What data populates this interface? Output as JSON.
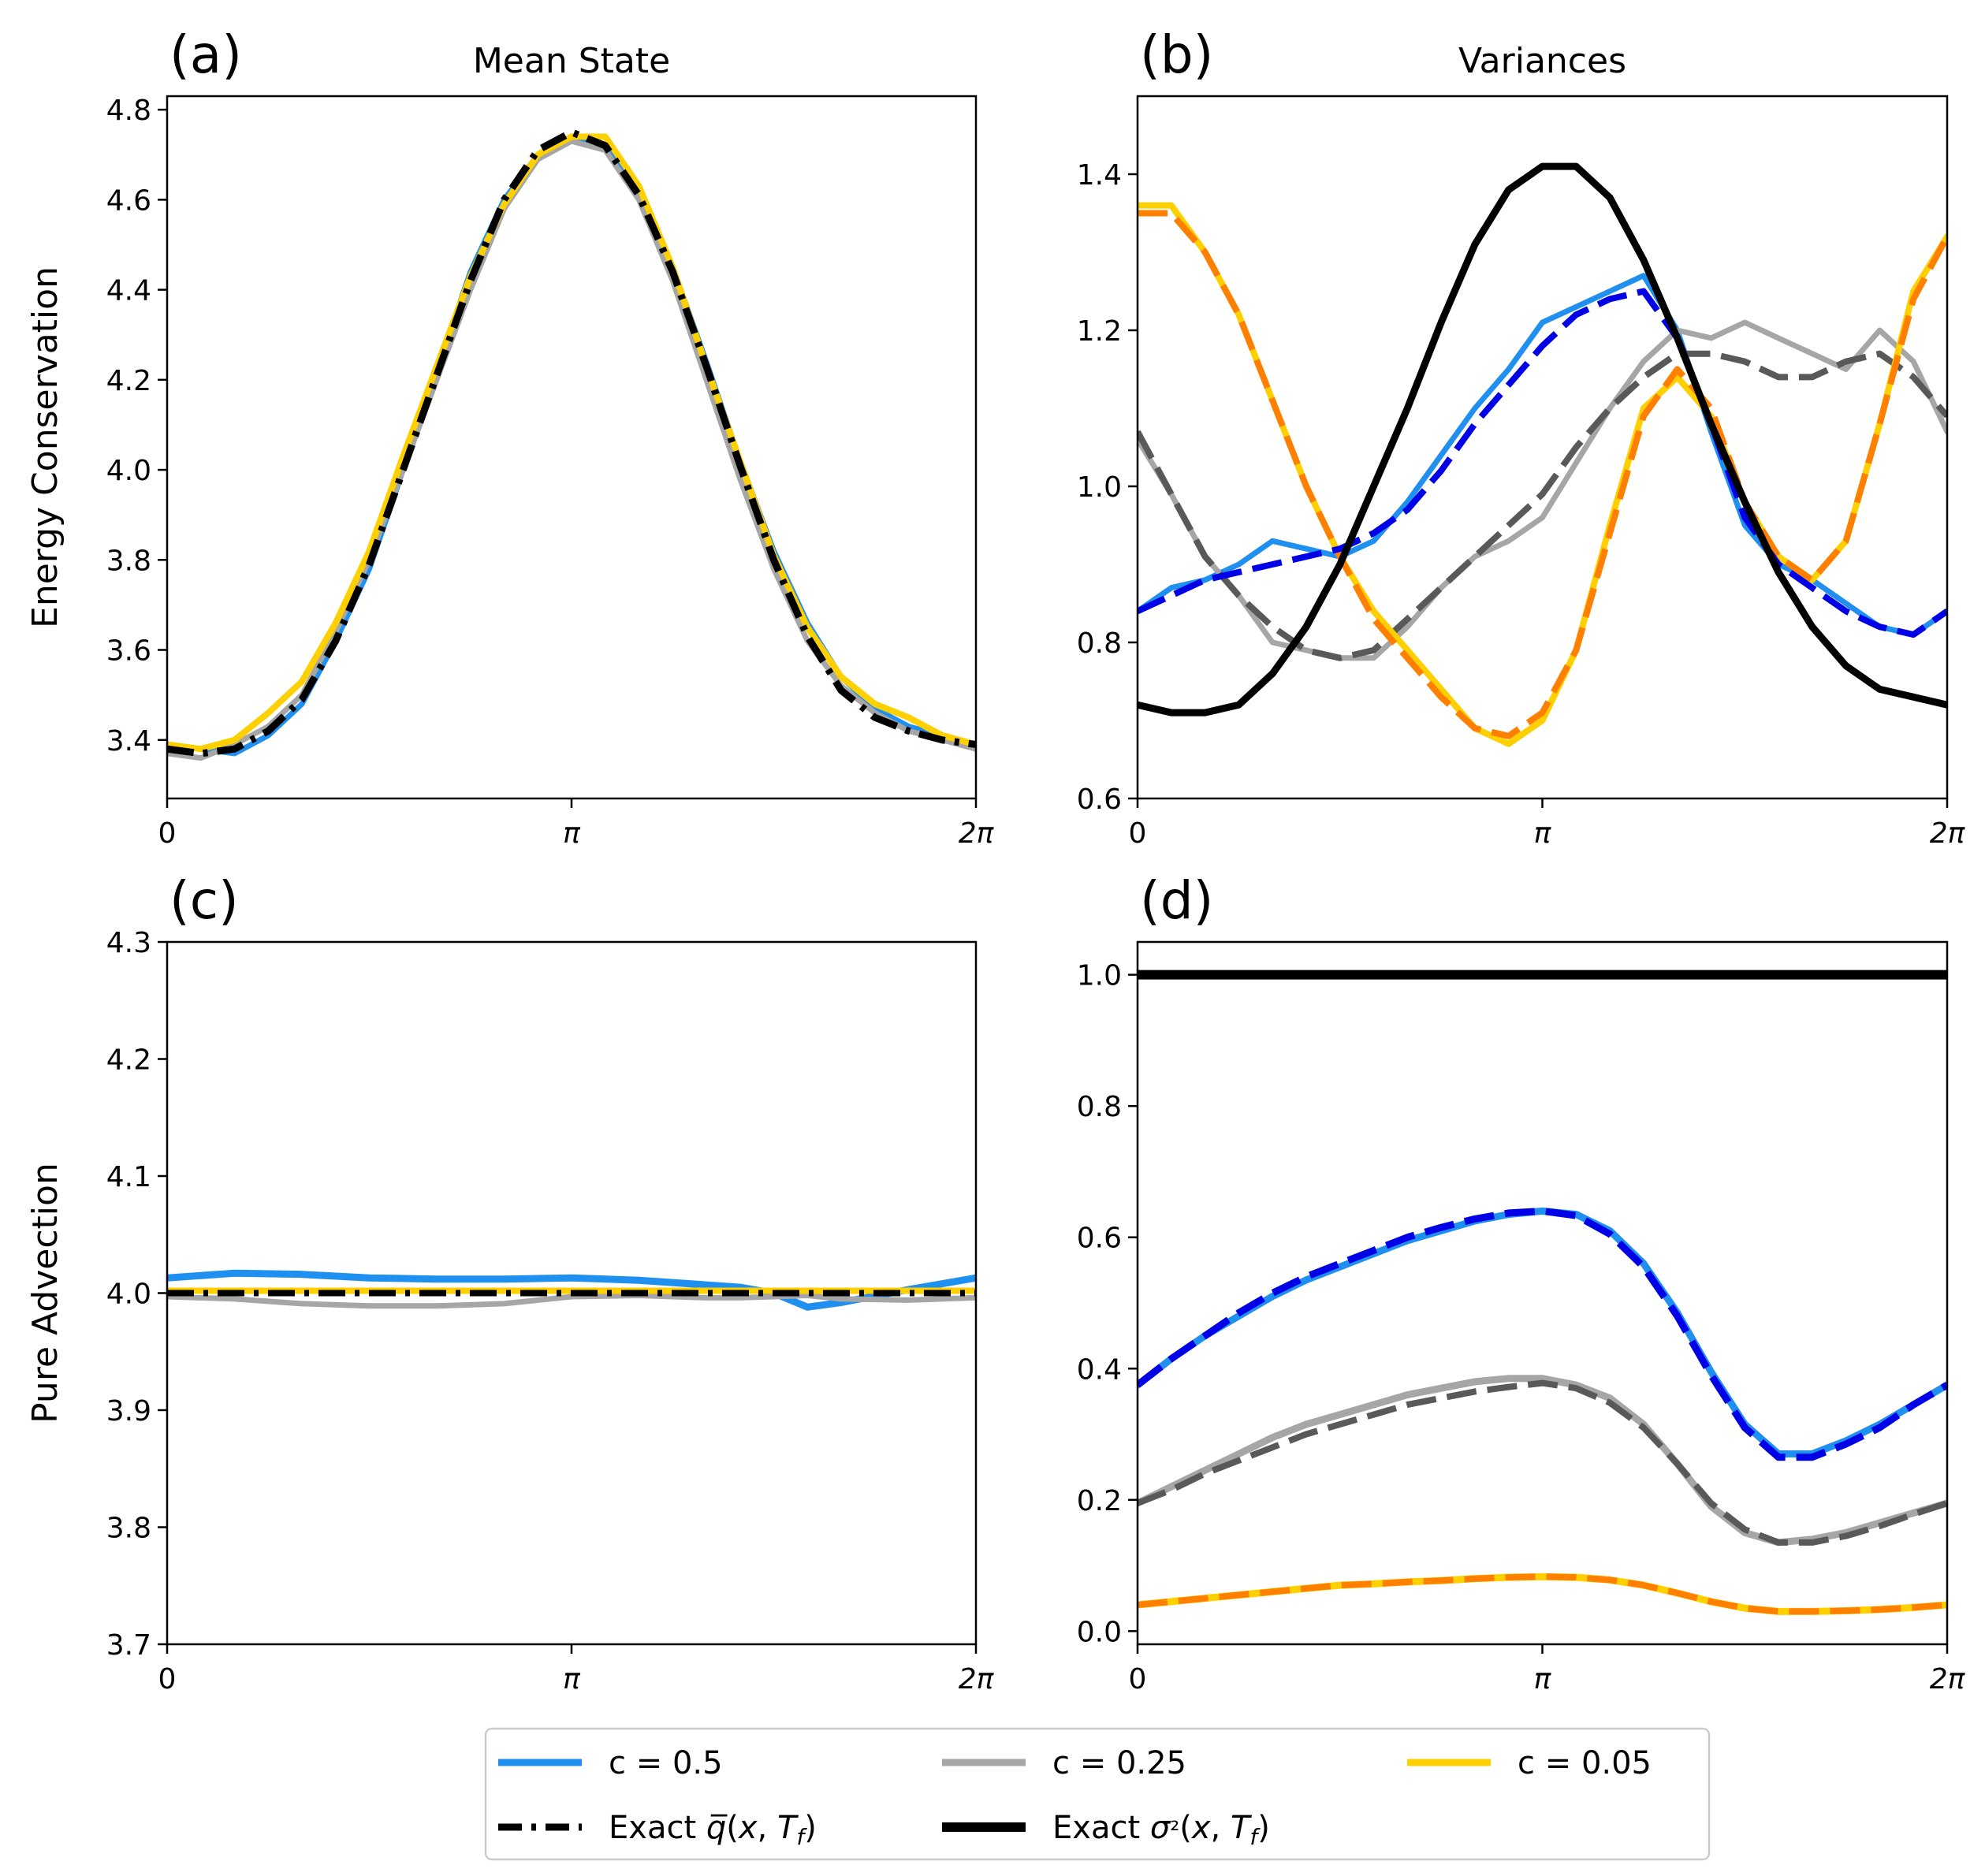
{
  "colors": {
    "blue_light": "#1f8ff0",
    "blue_dark": "#0000e6",
    "gray_light": "#a6a6a6",
    "gray_dark": "#595959",
    "yellow": "#ffd000",
    "orange": "#ff8000",
    "black": "#000000"
  },
  "legend": {
    "items": [
      {
        "label": "c = 0.5",
        "color": "#1f8ff0",
        "style": "solid"
      },
      {
        "label": "c = 0.25",
        "color": "#a6a6a6",
        "style": "solid"
      },
      {
        "label": "c = 0.05",
        "color": "#ffd000",
        "style": "solid"
      },
      {
        "label": "Exact q̅(x, T_f)",
        "color": "#000000",
        "style": "dashdot"
      },
      {
        "label": "Exact σ²(x, T_f)",
        "color": "#000000",
        "style": "solid-thick"
      }
    ],
    "placement": "bottom-center"
  },
  "chart_data": [
    {
      "panel": "(a)",
      "type": "line",
      "title": "Mean State",
      "ylabel": "Energy Conservation",
      "xlabel": "",
      "xlim": [
        0,
        6.2832
      ],
      "ylim": [
        3.27,
        4.83
      ],
      "xticks": [
        {
          "value": 0,
          "label": "0"
        },
        {
          "value": 3.1416,
          "label": "π"
        },
        {
          "value": 6.2832,
          "label": "2π"
        }
      ],
      "yticks": [
        3.4,
        3.6,
        3.8,
        4.0,
        4.2,
        4.4,
        4.6,
        4.8
      ],
      "grid": false,
      "x": [
        0,
        0.2618,
        0.5236,
        0.7854,
        1.0472,
        1.309,
        1.5708,
        1.8326,
        2.0944,
        2.3562,
        2.618,
        2.8798,
        3.1416,
        3.4034,
        3.6652,
        3.927,
        4.1888,
        4.4506,
        4.7124,
        4.9742,
        5.236,
        5.4978,
        5.7596,
        6.0214,
        6.2832
      ],
      "series": [
        {
          "name": "c = 0.5",
          "color": "#1f8ff0",
          "style": "solid",
          "width": 7,
          "values": [
            3.39,
            3.38,
            3.37,
            3.41,
            3.48,
            3.62,
            3.78,
            4.0,
            4.22,
            4.44,
            4.6,
            4.7,
            4.74,
            4.72,
            4.62,
            4.45,
            4.24,
            4.02,
            3.82,
            3.66,
            3.54,
            3.47,
            3.43,
            3.41,
            3.39
          ]
        },
        {
          "name": "c = 0.25",
          "color": "#a6a6a6",
          "style": "solid",
          "width": 7,
          "values": [
            3.37,
            3.36,
            3.39,
            3.43,
            3.5,
            3.64,
            3.8,
            4.0,
            4.2,
            4.4,
            4.58,
            4.69,
            4.73,
            4.71,
            4.6,
            4.42,
            4.2,
            3.98,
            3.78,
            3.62,
            3.52,
            3.46,
            3.42,
            3.4,
            3.38
          ]
        },
        {
          "name": "c = 0.05",
          "color": "#ffd000",
          "style": "solid",
          "width": 8,
          "values": [
            3.39,
            3.38,
            3.4,
            3.46,
            3.53,
            3.66,
            3.82,
            4.03,
            4.23,
            4.43,
            4.59,
            4.7,
            4.74,
            4.74,
            4.63,
            4.45,
            4.23,
            4.02,
            3.81,
            3.65,
            3.54,
            3.48,
            3.45,
            3.41,
            3.39
          ]
        },
        {
          "name": "Exact q̅(x, T_f)",
          "color": "#000000",
          "style": "dashdot",
          "width": 9,
          "values": [
            3.38,
            3.37,
            3.38,
            3.42,
            3.49,
            3.62,
            3.79,
            4.0,
            4.21,
            4.42,
            4.6,
            4.71,
            4.75,
            4.72,
            4.61,
            4.44,
            4.23,
            4.01,
            3.8,
            3.63,
            3.51,
            3.45,
            3.42,
            3.4,
            3.39
          ]
        }
      ]
    },
    {
      "panel": "(b)",
      "type": "line",
      "title": "Variances",
      "ylabel": "",
      "xlabel": "",
      "xlim": [
        0,
        6.2832
      ],
      "ylim": [
        0.6,
        1.5
      ],
      "xticks": [
        {
          "value": 0,
          "label": "0"
        },
        {
          "value": 3.1416,
          "label": "π"
        },
        {
          "value": 6.2832,
          "label": "2π"
        }
      ],
      "yticks": [
        0.6,
        0.8,
        1.0,
        1.2,
        1.4
      ],
      "grid": false,
      "x": [
        0,
        0.2618,
        0.5236,
        0.7854,
        1.0472,
        1.309,
        1.5708,
        1.8326,
        2.0944,
        2.3562,
        2.618,
        2.8798,
        3.1416,
        3.4034,
        3.6652,
        3.927,
        4.1888,
        4.4506,
        4.7124,
        4.9742,
        5.236,
        5.4978,
        5.7596,
        6.0214,
        6.2832
      ],
      "series": [
        {
          "name": "c = 0.5",
          "color": "#1f8ff0",
          "style": "solid",
          "width": 7,
          "values": [
            0.84,
            0.87,
            0.88,
            0.9,
            0.93,
            0.92,
            0.91,
            0.93,
            0.98,
            1.04,
            1.1,
            1.15,
            1.21,
            1.23,
            1.25,
            1.27,
            1.2,
            1.07,
            0.95,
            0.9,
            0.88,
            0.85,
            0.82,
            0.81,
            0.84
          ]
        },
        {
          "name": "c = 0.25",
          "color": "#a6a6a6",
          "style": "solid",
          "width": 7,
          "values": [
            1.06,
            0.99,
            0.91,
            0.86,
            0.8,
            0.79,
            0.78,
            0.78,
            0.82,
            0.87,
            0.91,
            0.93,
            0.96,
            1.03,
            1.1,
            1.16,
            1.2,
            1.19,
            1.21,
            1.19,
            1.17,
            1.15,
            1.2,
            1.16,
            1.07
          ]
        },
        {
          "name": "c = 0.25 (dashed)",
          "color": "#595959",
          "style": "dashed",
          "width": 8,
          "values": [
            1.07,
            0.99,
            0.91,
            0.86,
            0.82,
            0.79,
            0.78,
            0.79,
            0.83,
            0.87,
            0.91,
            0.95,
            0.99,
            1.05,
            1.1,
            1.14,
            1.17,
            1.17,
            1.16,
            1.14,
            1.14,
            1.16,
            1.17,
            1.14,
            1.09
          ]
        },
        {
          "name": "c = 0.05",
          "color": "#ffd000",
          "style": "solid",
          "width": 8,
          "values": [
            1.36,
            1.36,
            1.3,
            1.22,
            1.11,
            1.0,
            0.91,
            0.84,
            0.79,
            0.74,
            0.69,
            0.67,
            0.7,
            0.79,
            0.95,
            1.1,
            1.14,
            1.09,
            0.98,
            0.91,
            0.88,
            0.93,
            1.08,
            1.25,
            1.32
          ]
        },
        {
          "name": "c = 0.05 (dashed)",
          "color": "#ff8000",
          "style": "dashed",
          "width": 8,
          "values": [
            1.35,
            1.35,
            1.3,
            1.22,
            1.11,
            1.0,
            0.91,
            0.83,
            0.78,
            0.73,
            0.69,
            0.68,
            0.71,
            0.79,
            0.94,
            1.09,
            1.15,
            1.1,
            0.98,
            0.91,
            0.88,
            0.93,
            1.08,
            1.24,
            1.32
          ]
        },
        {
          "name": "c = 0.5 (dashed)",
          "color": "#0000e6",
          "style": "dashed",
          "width": 8,
          "values": [
            0.84,
            0.86,
            0.88,
            0.89,
            0.9,
            0.91,
            0.92,
            0.94,
            0.97,
            1.02,
            1.08,
            1.13,
            1.18,
            1.22,
            1.24,
            1.25,
            1.19,
            1.08,
            0.96,
            0.9,
            0.87,
            0.84,
            0.82,
            0.81,
            0.84
          ]
        },
        {
          "name": "Exact σ²(x, T_f)",
          "color": "#000000",
          "style": "solid",
          "width": 9,
          "values": [
            0.72,
            0.71,
            0.71,
            0.72,
            0.76,
            0.82,
            0.9,
            1.0,
            1.1,
            1.21,
            1.31,
            1.38,
            1.41,
            1.41,
            1.37,
            1.29,
            1.19,
            1.08,
            0.98,
            0.89,
            0.82,
            0.77,
            0.74,
            0.73,
            0.72
          ]
        }
      ]
    },
    {
      "panel": "(c)",
      "type": "line",
      "title": "",
      "ylabel": "Pure Advection",
      "xlabel": "",
      "xlim": [
        0,
        6.2832
      ],
      "ylim": [
        3.7,
        4.3
      ],
      "xticks": [
        {
          "value": 0,
          "label": "0"
        },
        {
          "value": 3.1416,
          "label": "π"
        },
        {
          "value": 6.2832,
          "label": "2π"
        }
      ],
      "yticks": [
        3.7,
        3.8,
        3.9,
        4.0,
        4.1,
        4.2,
        4.3
      ],
      "grid": false,
      "x": [
        0,
        0.5236,
        1.0472,
        1.5708,
        2.0944,
        2.618,
        3.1416,
        3.6652,
        4.1888,
        4.4506,
        4.7124,
        4.9742,
        5.236,
        5.7596,
        6.2832
      ],
      "series": [
        {
          "name": "c = 0.5",
          "color": "#1f8ff0",
          "style": "solid",
          "width": 9,
          "values": [
            4.013,
            4.017,
            4.016,
            4.013,
            4.012,
            4.012,
            4.013,
            4.011,
            4.007,
            4.005,
            4.0,
            3.988,
            3.992,
            4.003,
            4.013
          ]
        },
        {
          "name": "c = 0.25",
          "color": "#a6a6a6",
          "style": "solid",
          "width": 7,
          "values": [
            3.997,
            3.995,
            3.991,
            3.989,
            3.989,
            3.991,
            3.997,
            3.998,
            3.996,
            3.996,
            3.997,
            3.998,
            3.995,
            3.994,
            3.996
          ]
        },
        {
          "name": "c = 0.05",
          "color": "#ffd000",
          "style": "solid",
          "width": 8,
          "values": [
            4.002,
            4.002,
            4.002,
            4.002,
            4.002,
            4.002,
            4.002,
            4.002,
            4.002,
            4.002,
            4.002,
            4.002,
            4.002,
            4.002,
            4.002
          ]
        },
        {
          "name": "Exact q̅(x, T_f)",
          "color": "#000000",
          "style": "dashdot",
          "width": 8,
          "values": [
            4.0,
            4.0,
            4.0,
            4.0,
            4.0,
            4.0,
            4.0,
            4.0,
            4.0,
            4.0,
            4.0,
            4.0,
            4.0,
            4.0,
            4.0
          ]
        }
      ]
    },
    {
      "panel": "(d)",
      "type": "line",
      "title": "",
      "ylabel": "",
      "xlabel": "",
      "xlim": [
        0,
        6.2832
      ],
      "ylim": [
        -0.02,
        1.05
      ],
      "xticks": [
        {
          "value": 0,
          "label": "0"
        },
        {
          "value": 3.1416,
          "label": "π"
        },
        {
          "value": 6.2832,
          "label": "2π"
        }
      ],
      "yticks": [
        0.0,
        0.2,
        0.4,
        0.6,
        0.8,
        1.0
      ],
      "grid": false,
      "x": [
        0,
        0.2618,
        0.5236,
        0.7854,
        1.0472,
        1.309,
        1.5708,
        1.8326,
        2.0944,
        2.3562,
        2.618,
        2.8798,
        3.1416,
        3.4034,
        3.6652,
        3.927,
        4.1888,
        4.4506,
        4.7124,
        4.9742,
        5.236,
        5.4978,
        5.7596,
        6.0214,
        6.2832
      ],
      "series": [
        {
          "name": "c = 0.5",
          "color": "#1f8ff0",
          "style": "solid",
          "width": 9,
          "values": [
            0.375,
            0.415,
            0.45,
            0.48,
            0.51,
            0.535,
            0.555,
            0.575,
            0.595,
            0.61,
            0.625,
            0.635,
            0.64,
            0.635,
            0.61,
            0.56,
            0.485,
            0.395,
            0.315,
            0.27,
            0.27,
            0.29,
            0.315,
            0.345,
            0.375
          ]
        },
        {
          "name": "c = 0.5 (dashed)",
          "color": "#0000e6",
          "style": "dashed",
          "width": 9,
          "values": [
            0.375,
            0.415,
            0.45,
            0.485,
            0.515,
            0.54,
            0.56,
            0.58,
            0.6,
            0.615,
            0.628,
            0.637,
            0.64,
            0.633,
            0.605,
            0.555,
            0.48,
            0.39,
            0.31,
            0.265,
            0.265,
            0.285,
            0.31,
            0.345,
            0.375
          ]
        },
        {
          "name": "c = 0.25",
          "color": "#a6a6a6",
          "style": "solid",
          "width": 9,
          "values": [
            0.195,
            0.22,
            0.245,
            0.27,
            0.295,
            0.315,
            0.33,
            0.345,
            0.36,
            0.37,
            0.38,
            0.385,
            0.385,
            0.375,
            0.355,
            0.315,
            0.255,
            0.19,
            0.15,
            0.135,
            0.14,
            0.15,
            0.165,
            0.18,
            0.195
          ]
        },
        {
          "name": "c = 0.25 (dashed)",
          "color": "#595959",
          "style": "dashed",
          "width": 8,
          "values": [
            0.195,
            0.215,
            0.24,
            0.26,
            0.28,
            0.3,
            0.315,
            0.33,
            0.345,
            0.355,
            0.365,
            0.372,
            0.378,
            0.37,
            0.348,
            0.31,
            0.255,
            0.195,
            0.155,
            0.135,
            0.135,
            0.145,
            0.16,
            0.178,
            0.195
          ]
        },
        {
          "name": "c = 0.05",
          "color": "#ffd000",
          "style": "solid",
          "width": 9,
          "values": [
            0.04,
            0.045,
            0.05,
            0.055,
            0.06,
            0.065,
            0.07,
            0.072,
            0.075,
            0.077,
            0.08,
            0.082,
            0.083,
            0.082,
            0.078,
            0.07,
            0.058,
            0.045,
            0.035,
            0.03,
            0.03,
            0.031,
            0.033,
            0.036,
            0.04
          ]
        },
        {
          "name": "c = 0.05 (dashed)",
          "color": "#ff8000",
          "style": "dashed",
          "width": 8,
          "values": [
            0.04,
            0.045,
            0.05,
            0.055,
            0.06,
            0.065,
            0.07,
            0.072,
            0.075,
            0.077,
            0.08,
            0.082,
            0.083,
            0.082,
            0.078,
            0.07,
            0.058,
            0.045,
            0.035,
            0.03,
            0.03,
            0.031,
            0.033,
            0.036,
            0.04
          ]
        },
        {
          "name": "Exact σ²(x, T_f)",
          "color": "#000000",
          "style": "solid",
          "width": 12,
          "values": [
            1.0,
            1.0,
            1.0,
            1.0,
            1.0,
            1.0,
            1.0,
            1.0,
            1.0,
            1.0,
            1.0,
            1.0,
            1.0,
            1.0,
            1.0,
            1.0,
            1.0,
            1.0,
            1.0,
            1.0,
            1.0,
            1.0,
            1.0,
            1.0,
            1.0
          ]
        }
      ]
    }
  ]
}
